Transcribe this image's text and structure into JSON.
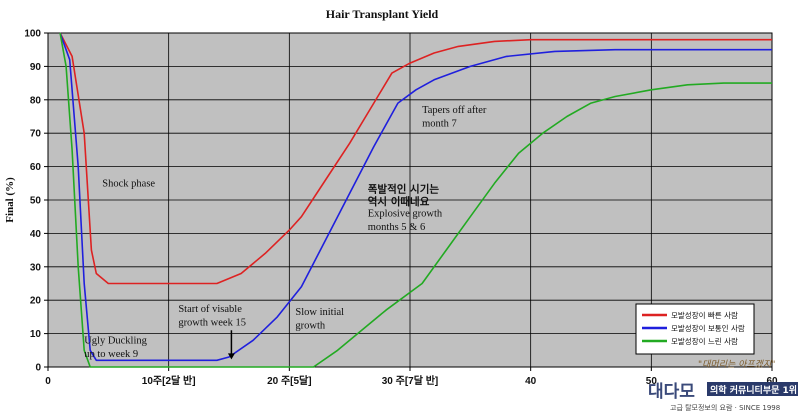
{
  "chart_data": {
    "type": "line",
    "title": "Hair Transplant Yield",
    "ylabel": "Final (%)",
    "xlabel": "",
    "xlim": [
      0,
      60
    ],
    "ylim": [
      0,
      100
    ],
    "x_ticks": [
      {
        "value": 0,
        "label": "0"
      },
      {
        "value": 10,
        "label": "10주[2달 반]"
      },
      {
        "value": 20,
        "label": "20 주[5달]"
      },
      {
        "value": 30,
        "label": "30 주[7달 반]"
      },
      {
        "value": 40,
        "label": "40"
      },
      {
        "value": 50,
        "label": "50"
      },
      {
        "value": 60,
        "label": "60"
      }
    ],
    "y_ticks": [
      0,
      10,
      20,
      30,
      40,
      50,
      60,
      70,
      80,
      90,
      100
    ],
    "grid": true,
    "legend_position": "bottom-right",
    "series": [
      {
        "name": "모발성장이 빠른 사람",
        "color": "#dd2222",
        "points": [
          [
            1,
            100
          ],
          [
            2,
            93
          ],
          [
            3,
            70
          ],
          [
            3.6,
            35
          ],
          [
            4,
            28
          ],
          [
            5,
            25
          ],
          [
            10,
            25
          ],
          [
            14,
            25
          ],
          [
            16,
            28
          ],
          [
            18,
            34
          ],
          [
            20,
            41
          ],
          [
            21,
            45
          ],
          [
            23,
            56
          ],
          [
            25,
            67
          ],
          [
            27,
            79
          ],
          [
            28.5,
            88
          ],
          [
            30,
            91
          ],
          [
            32,
            94
          ],
          [
            34,
            96
          ],
          [
            37,
            97.5
          ],
          [
            40,
            98
          ],
          [
            60,
            98
          ]
        ]
      },
      {
        "name": "모발성장이 보통인 사람",
        "color": "#1f1fdd",
        "points": [
          [
            1,
            100
          ],
          [
            1.8,
            92
          ],
          [
            2.5,
            60
          ],
          [
            3,
            25
          ],
          [
            3.5,
            5
          ],
          [
            4,
            2
          ],
          [
            10,
            2
          ],
          [
            14,
            2
          ],
          [
            15,
            3
          ],
          [
            17,
            8
          ],
          [
            19,
            15
          ],
          [
            21,
            24
          ],
          [
            23,
            38
          ],
          [
            25,
            52
          ],
          [
            27,
            66
          ],
          [
            29,
            79
          ],
          [
            30.5,
            83
          ],
          [
            32,
            86
          ],
          [
            35,
            90
          ],
          [
            38,
            93
          ],
          [
            42,
            94.5
          ],
          [
            47,
            95
          ],
          [
            60,
            95
          ]
        ]
      },
      {
        "name": "모발성장이 느린 사람",
        "color": "#22aa22",
        "points": [
          [
            1,
            100
          ],
          [
            1.5,
            90
          ],
          [
            2,
            65
          ],
          [
            2.5,
            30
          ],
          [
            3,
            5
          ],
          [
            3.5,
            0
          ],
          [
            10,
            0
          ],
          [
            22,
            0
          ],
          [
            24,
            5
          ],
          [
            26,
            11
          ],
          [
            28,
            17
          ],
          [
            31,
            25
          ],
          [
            33,
            35
          ],
          [
            35,
            45
          ],
          [
            37,
            55
          ],
          [
            39,
            64
          ],
          [
            41,
            70
          ],
          [
            43,
            75
          ],
          [
            45,
            79
          ],
          [
            47,
            81
          ],
          [
            50,
            83
          ],
          [
            53,
            84.5
          ],
          [
            56,
            85
          ],
          [
            60,
            85
          ]
        ]
      }
    ],
    "annotations": [
      {
        "text": "Shock phase",
        "x": 4.5,
        "y": 54
      },
      {
        "text": "Start of visable",
        "x": 10.8,
        "y": 16.5
      },
      {
        "text": "growth week 15",
        "x": 10.8,
        "y": 12.5
      },
      {
        "text": "Slow initial",
        "x": 20.5,
        "y": 15.5
      },
      {
        "text": "growth",
        "x": 20.5,
        "y": 11.5
      },
      {
        "text": "Ugly Duckling",
        "x": 3,
        "y": 7
      },
      {
        "text": "up to week 9",
        "x": 3,
        "y": 3
      },
      {
        "text": "Tapers off after",
        "x": 31,
        "y": 76
      },
      {
        "text": "month 7",
        "x": 31,
        "y": 72
      },
      {
        "text": "폭발적인 시기는",
        "x": 26.5,
        "y": 52.3
      },
      {
        "text": "역시 이때네요",
        "x": 26.5,
        "y": 48.5
      },
      {
        "text": "Explosive growth",
        "x": 26.5,
        "y": 45
      },
      {
        "text": "months 5 & 6",
        "x": 26.5,
        "y": 41
      }
    ],
    "arrow": {
      "from": [
        15.2,
        11
      ],
      "to": [
        15.2,
        2.3
      ]
    }
  },
  "watermark": {
    "tagline": "\"대머리는 아프겠지\"",
    "logo": "대다모",
    "banner": "의학 커뮤니티부문 1위",
    "subline": "고급 탈모정보의 요람 · SINCE 1998"
  }
}
